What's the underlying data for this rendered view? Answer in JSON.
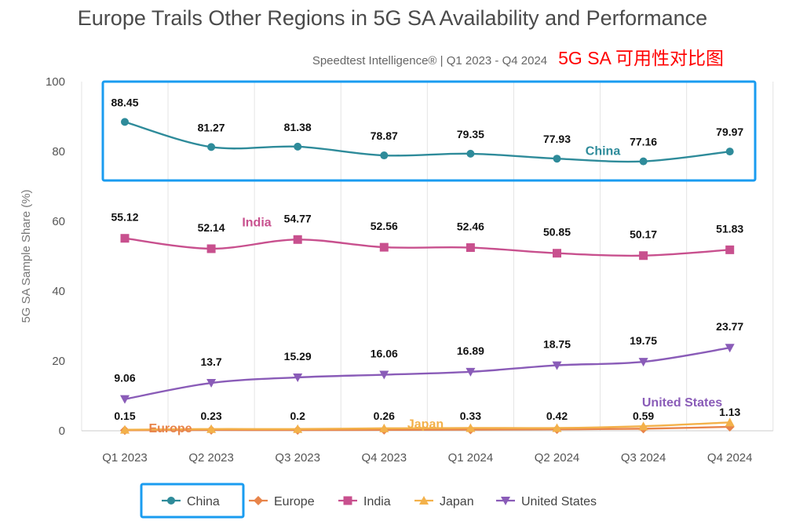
{
  "chart_data": {
    "type": "line",
    "title": "Europe Trails Other Regions in 5G SA Availability and Performance",
    "subtitle": "Speedtest Intelligence® | Q1 2023 - Q4 2024",
    "annotation": "5G SA 可用性对比图",
    "ylabel": "5G SA Sample Share (%)",
    "xlabel": "",
    "ylim": [
      0,
      100
    ],
    "yticks": [
      0,
      20,
      40,
      60,
      80,
      100
    ],
    "grid": "vertical",
    "legend_position": "bottom",
    "categories": [
      "Q1 2023",
      "Q2 2023",
      "Q3 2023",
      "Q4 2023",
      "Q1 2024",
      "Q2 2024",
      "Q3 2024",
      "Q4 2024"
    ],
    "series": [
      {
        "name": "China",
        "color": "#2e8b9a",
        "marker": "circle",
        "label_color": "#2e8b9a",
        "values": [
          88.45,
          81.27,
          81.38,
          78.87,
          79.35,
          77.93,
          77.16,
          79.97
        ],
        "data_labels": [
          "88.45",
          "81.27",
          "81.38",
          "78.87",
          "79.35",
          "77.93",
          "77.16",
          "79.97"
        ]
      },
      {
        "name": "Europe",
        "color": "#e8844a",
        "marker": "diamond",
        "label_color": "#e8844a",
        "values": [
          0.15,
          0.23,
          0.2,
          0.26,
          0.33,
          0.42,
          0.59,
          1.13
        ],
        "data_labels": [
          "0.15",
          "0.23",
          "0.2",
          "0.26",
          "0.33",
          "0.42",
          "0.59",
          "1.13"
        ]
      },
      {
        "name": "India",
        "color": "#c8508e",
        "marker": "square",
        "label_color": "#c8508e",
        "values": [
          55.12,
          52.14,
          54.77,
          52.56,
          52.46,
          50.85,
          50.17,
          51.83
        ],
        "data_labels": [
          "55.12",
          "52.14",
          "54.77",
          "52.56",
          "52.46",
          "50.85",
          "50.17",
          "51.83"
        ]
      },
      {
        "name": "Japan",
        "color": "#f3b14a",
        "marker": "triangle-up",
        "label_color": "#f3b14a",
        "values": [
          0.3,
          0.5,
          0.5,
          0.7,
          0.8,
          0.8,
          1.3,
          2.4
        ]
      },
      {
        "name": "United States",
        "color": "#8a5cb8",
        "marker": "triangle-down",
        "label_color": "#8a5cb8",
        "values": [
          9.06,
          13.7,
          15.29,
          16.06,
          16.89,
          18.75,
          19.75,
          23.77
        ],
        "data_labels": [
          "9.06",
          "13.7",
          "15.29",
          "16.06",
          "16.89",
          "18.75",
          "19.75",
          "23.77"
        ]
      }
    ],
    "highlight_color": "#1a9cf0"
  }
}
